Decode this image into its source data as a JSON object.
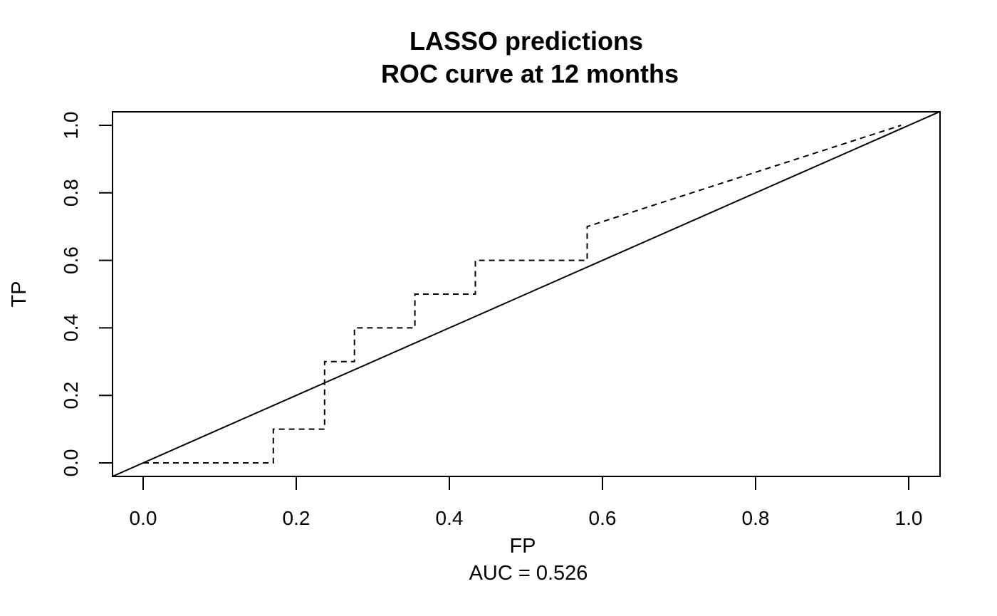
{
  "chart_data": {
    "type": "line",
    "title": "LASSO predictions",
    "subtitle": "ROC curve at 12 months",
    "xlabel": "FP",
    "ylabel": "TP",
    "caption": "AUC =  0.526",
    "xlim": [
      0,
      1
    ],
    "ylim": [
      0,
      1
    ],
    "x_ticks": [
      "0.0",
      "0.2",
      "0.4",
      "0.6",
      "0.8",
      "1.0"
    ],
    "y_ticks": [
      "0.0",
      "0.2",
      "0.4",
      "0.6",
      "0.8",
      "1.0"
    ],
    "grid": false,
    "series": [
      {
        "style": "dashed",
        "x": [
          0.0,
          0.17,
          0.17,
          0.237,
          0.237,
          0.276,
          0.276,
          0.355,
          0.355,
          0.434,
          0.434,
          0.58,
          0.58,
          0.99
        ],
        "y": [
          0.0,
          0.0,
          0.1,
          0.1,
          0.3,
          0.3,
          0.4,
          0.4,
          0.5,
          0.5,
          0.6,
          0.6,
          0.7,
          1.0
        ]
      },
      {
        "style": "solid",
        "x": [
          -0.05,
          1.05
        ],
        "y": [
          -0.05,
          1.05
        ]
      }
    ]
  }
}
